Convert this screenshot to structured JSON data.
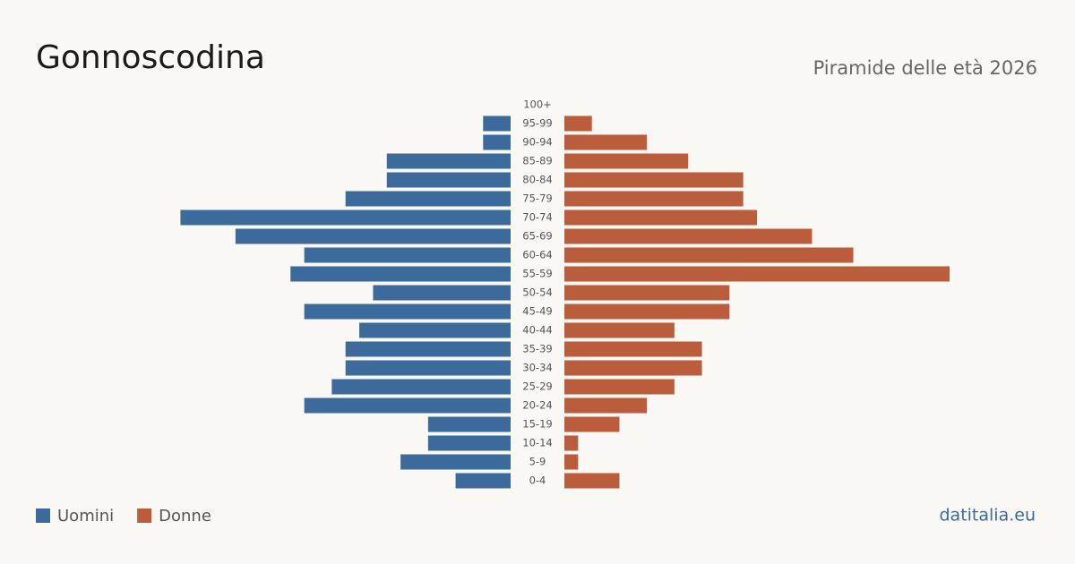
{
  "chart_data": {
    "type": "pyramid",
    "title": "Gonnoscodina",
    "subtitle": "Piramide delle età 2026",
    "source": "datitalia.eu",
    "categories": [
      "100+",
      "95-99",
      "90-94",
      "85-89",
      "80-84",
      "75-79",
      "70-74",
      "65-69",
      "60-64",
      "55-59",
      "50-54",
      "45-49",
      "40-44",
      "35-39",
      "30-34",
      "25-29",
      "20-24",
      "15-19",
      "10-14",
      "5-9",
      "0-4"
    ],
    "series": [
      {
        "name": "Uomini",
        "color": "#3b6a9b",
        "values": [
          0,
          2,
          2,
          9,
          9,
          12,
          24,
          20,
          15,
          16,
          10,
          15,
          11,
          12,
          12,
          13,
          15,
          6,
          6,
          8,
          4
        ]
      },
      {
        "name": "Donne",
        "color": "#b95d3c",
        "values": [
          0,
          2,
          6,
          9,
          13,
          13,
          14,
          18,
          21,
          28,
          12,
          12,
          8,
          10,
          10,
          8,
          6,
          4,
          1,
          1,
          4
        ]
      }
    ]
  }
}
